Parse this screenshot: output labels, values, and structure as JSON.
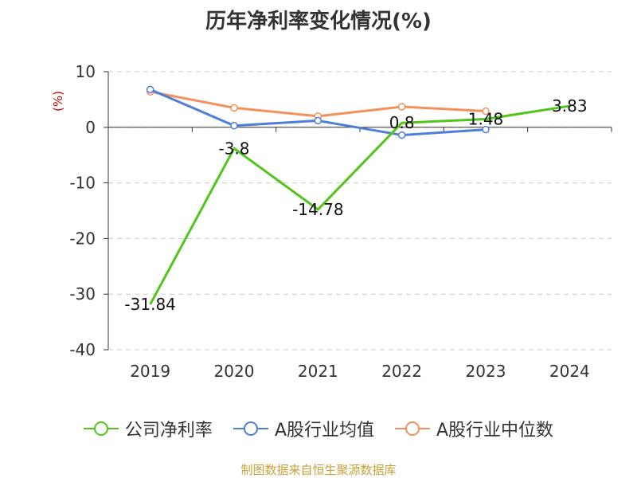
{
  "title": "历年净利率变化情况(%)",
  "chart_data": {
    "type": "line",
    "categories": [
      "2019",
      "2020",
      "2021",
      "2022",
      "2023",
      "2024"
    ],
    "ylabel": "(%)",
    "ylim": [
      -40,
      10
    ],
    "yticks": [
      10,
      0,
      -10,
      -20,
      -30,
      -40
    ],
    "grid": true,
    "legend_position": "bottom",
    "series": [
      {
        "name": "公司净利率",
        "color": "#52c41a",
        "values": [
          -31.84,
          -3.8,
          -14.78,
          0.8,
          1.48,
          3.83
        ],
        "labels": [
          "-31.84",
          "-3.8",
          "-14.78",
          "0.8",
          "1.48",
          "3.83"
        ]
      },
      {
        "name": "A股行业均值",
        "color": "#4e7fd8",
        "values": [
          6.8,
          0.3,
          1.2,
          -1.4,
          -0.4,
          null
        ]
      },
      {
        "name": "A股行业中位数",
        "color": "#f5905c",
        "values": [
          6.4,
          3.5,
          2.0,
          3.7,
          2.9,
          null
        ]
      }
    ]
  },
  "footer": "制图数据来自恒生聚源数据库"
}
